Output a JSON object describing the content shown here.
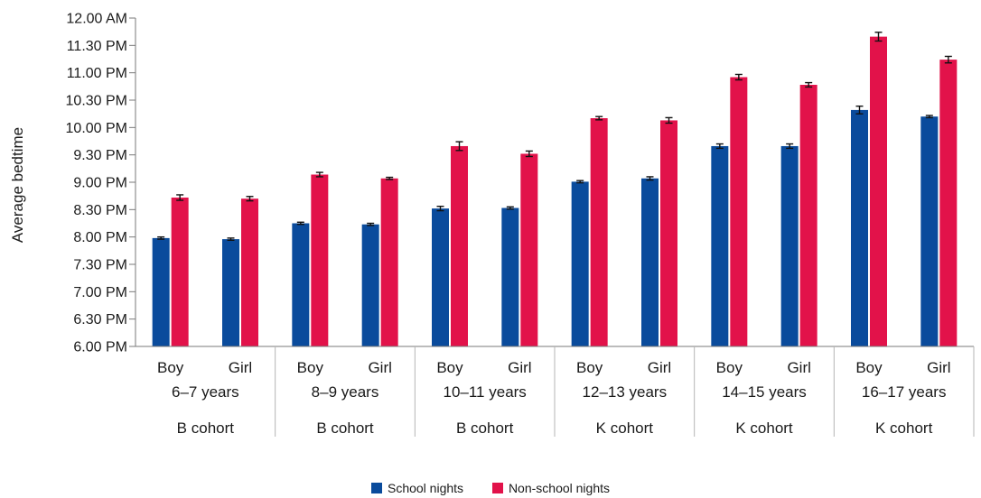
{
  "chart_data": {
    "type": "bar",
    "ylabel": "Average bedtime",
    "y_tick_labels": [
      "6.00 PM",
      "6.30 PM",
      "7.00 PM",
      "7.30 PM",
      "8.00 PM",
      "8.30 PM",
      "9.00 PM",
      "9.30 PM",
      "10.00 PM",
      "10.30 PM",
      "11.00 PM",
      "11.30 PM",
      "12.00 AM"
    ],
    "ylim_hours": [
      18,
      24
    ],
    "y_tick_step_hours": 0.5,
    "groups": [
      {
        "age": "6–7 years",
        "cohort": "B cohort",
        "sexes": [
          "Boy",
          "Girl"
        ]
      },
      {
        "age": "8–9 years",
        "cohort": "B cohort",
        "sexes": [
          "Boy",
          "Girl"
        ]
      },
      {
        "age": "10–11 years",
        "cohort": "B cohort",
        "sexes": [
          "Boy",
          "Girl"
        ]
      },
      {
        "age": "12–13 years",
        "cohort": "K cohort",
        "sexes": [
          "Boy",
          "Girl"
        ]
      },
      {
        "age": "14–15 years",
        "cohort": "K cohort",
        "sexes": [
          "Boy",
          "Girl"
        ]
      },
      {
        "age": "16–17 years",
        "cohort": "K cohort",
        "sexes": [
          "Boy",
          "Girl"
        ]
      }
    ],
    "series": [
      {
        "name": "School nights",
        "color": "#0a4b9c",
        "values_hours": [
          19.98,
          19.96,
          20.25,
          20.23,
          20.52,
          20.53,
          21.01,
          21.07,
          21.66,
          21.66,
          22.32,
          22.2
        ],
        "error_hours": [
          0.02,
          0.02,
          0.02,
          0.02,
          0.04,
          0.02,
          0.02,
          0.03,
          0.04,
          0.04,
          0.07,
          0.02
        ]
      },
      {
        "name": "Non-school nights",
        "color": "#e2124a",
        "values_hours": [
          20.72,
          20.7,
          21.14,
          21.07,
          21.66,
          21.52,
          22.17,
          22.13,
          22.92,
          22.78,
          23.66,
          23.24
        ],
        "error_hours": [
          0.05,
          0.04,
          0.04,
          0.02,
          0.08,
          0.05,
          0.03,
          0.05,
          0.05,
          0.04,
          0.08,
          0.06
        ]
      }
    ],
    "legend_position": "bottom",
    "grid": false
  }
}
